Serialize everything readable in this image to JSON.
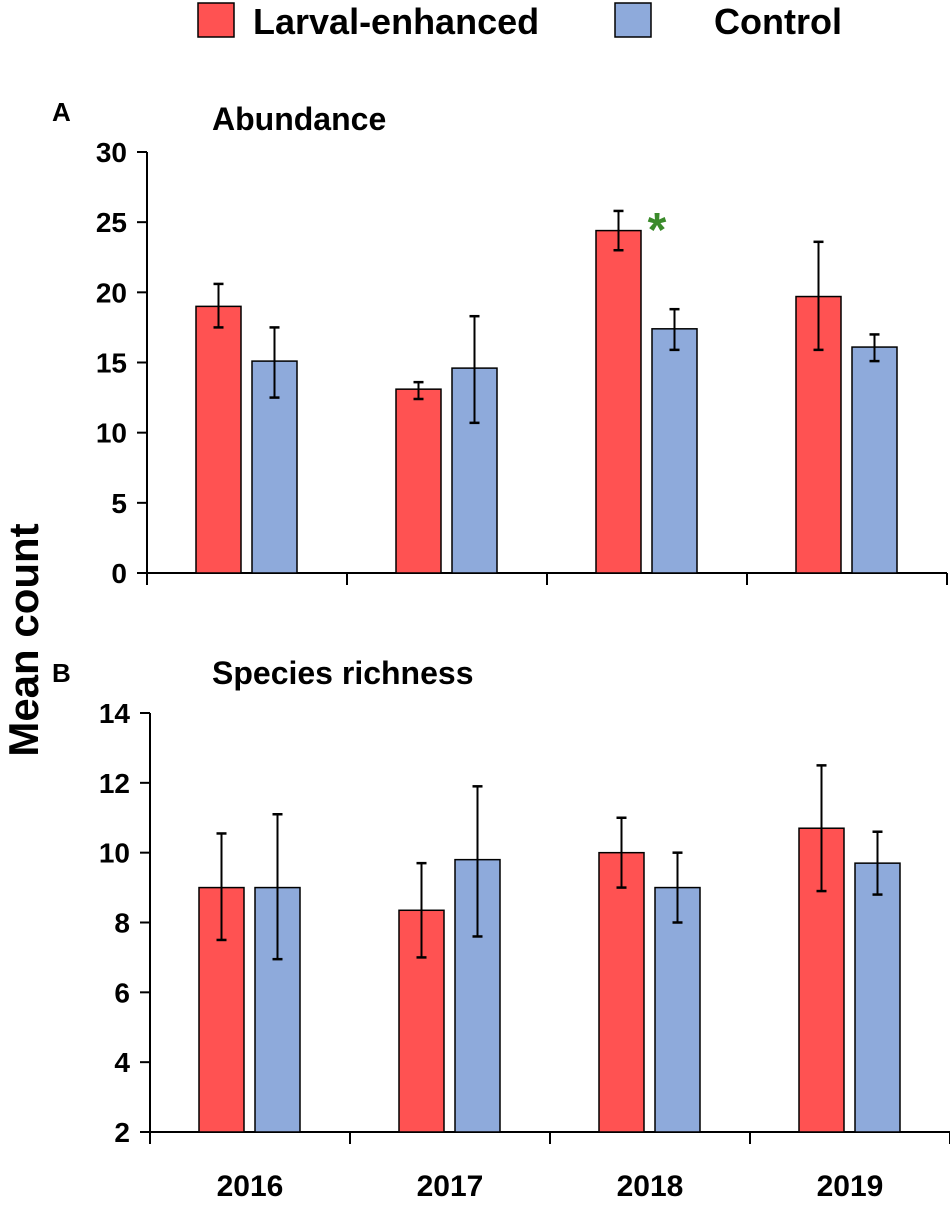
{
  "legend": {
    "items": [
      {
        "label": "Larval-enhanced",
        "color": "#FF5252"
      },
      {
        "label": "Control",
        "color": "#8EAADB"
      }
    ]
  },
  "ylabel": "Mean count",
  "chart_data": [
    {
      "type": "bar",
      "panel": "A",
      "title": "Abundance",
      "categories": [
        "2016",
        "2017",
        "2018",
        "2019"
      ],
      "ylim": [
        0,
        30
      ],
      "yticks": [
        0,
        5,
        10,
        15,
        20,
        25,
        30
      ],
      "series": [
        {
          "name": "Larval-enhanced",
          "values": [
            19.0,
            13.1,
            24.4,
            19.7
          ],
          "err_low": [
            17.5,
            12.4,
            23.0,
            15.9
          ],
          "err_high": [
            20.6,
            13.6,
            25.8,
            23.6
          ]
        },
        {
          "name": "Control",
          "values": [
            15.1,
            14.6,
            17.4,
            16.1
          ],
          "err_low": [
            12.5,
            10.7,
            15.9,
            15.1
          ],
          "err_high": [
            17.5,
            18.3,
            18.8,
            17.0
          ]
        }
      ],
      "annotations": [
        {
          "text": "*",
          "category": "2018",
          "color": "#3A8A2A"
        }
      ]
    },
    {
      "type": "bar",
      "panel": "B",
      "title": "Species richness",
      "categories": [
        "2016",
        "2017",
        "2018",
        "2019"
      ],
      "ylim": [
        2,
        14
      ],
      "yticks": [
        2,
        4,
        6,
        8,
        10,
        12,
        14
      ],
      "series": [
        {
          "name": "Larval-enhanced",
          "values": [
            9.0,
            8.35,
            10.0,
            10.7
          ],
          "err_low": [
            7.5,
            7.0,
            9.0,
            8.9
          ],
          "err_high": [
            10.55,
            9.7,
            11.0,
            12.5
          ]
        },
        {
          "name": "Control",
          "values": [
            9.0,
            9.8,
            9.0,
            9.7
          ],
          "err_low": [
            6.95,
            7.6,
            8.0,
            8.8
          ],
          "err_high": [
            11.1,
            11.9,
            10.0,
            10.6
          ]
        }
      ]
    }
  ]
}
